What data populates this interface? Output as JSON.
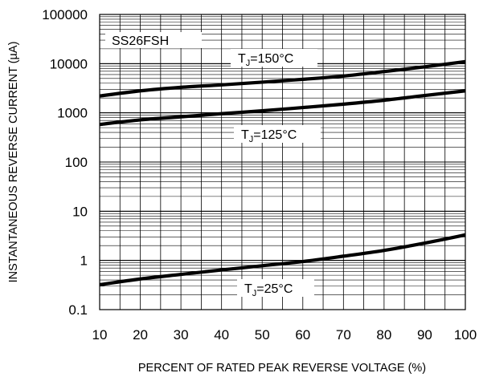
{
  "chart_data": {
    "type": "line",
    "xlabel": "PERCENT OF RATED PEAK REVERSE VOLTAGE (%)",
    "ylabel": "INSTANTANEOUS REVERSE CURRENT (µA)",
    "x_scale": "linear",
    "y_scale": "log",
    "xlim": [
      10,
      100
    ],
    "ylim": [
      0.1,
      100000
    ],
    "x_ticks": [
      "10",
      "20",
      "30",
      "40",
      "50",
      "60",
      "70",
      "80",
      "90",
      "100"
    ],
    "y_ticks": [
      "0.1",
      "1",
      "10",
      "100",
      "1000",
      "10000",
      "100000"
    ],
    "grid": true,
    "device_label": "SS26FSH",
    "series": [
      {
        "name": "TJ=150°C",
        "x": [
          10,
          20,
          30,
          40,
          50,
          60,
          70,
          80,
          90,
          100
        ],
        "values": [
          2200,
          2800,
          3300,
          3700,
          4200,
          4800,
          5600,
          6900,
          8600,
          11000
        ]
      },
      {
        "name": "TJ=125°C",
        "x": [
          10,
          20,
          30,
          40,
          50,
          60,
          70,
          80,
          90,
          100
        ],
        "values": [
          580,
          720,
          830,
          960,
          1100,
          1280,
          1500,
          1800,
          2250,
          2800
        ]
      },
      {
        "name": "TJ=25°C",
        "x": [
          10,
          20,
          30,
          40,
          50,
          60,
          70,
          80,
          90,
          100
        ],
        "values": [
          0.32,
          0.42,
          0.52,
          0.64,
          0.78,
          0.95,
          1.22,
          1.6,
          2.25,
          3.3
        ]
      }
    ],
    "annotations": [
      {
        "label": "T",
        "sub": "J",
        "rest": "=150°C"
      },
      {
        "label": "T",
        "sub": "J",
        "rest": "=125°C"
      },
      {
        "label": "T",
        "sub": "J",
        "rest": "=25°C"
      }
    ]
  }
}
